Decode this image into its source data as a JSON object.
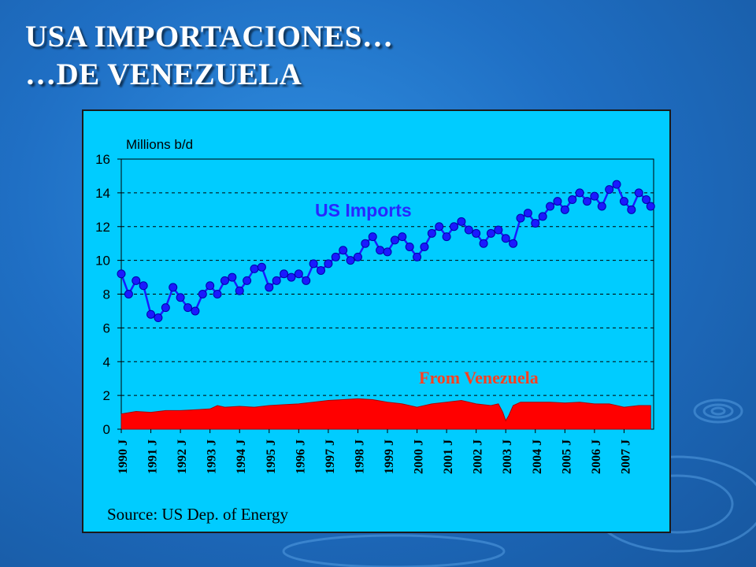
{
  "slide": {
    "title_line1": "USA IMPORTACIONES…",
    "title_line2": "…DE  VENEZUELA"
  },
  "colors": {
    "background": "#1f6fc4",
    "plot_area": "#00ccff",
    "us_imports": "#1a1aff",
    "venezuela": "#ff0000",
    "venezuela_label": "#ff4020"
  },
  "chart_data": {
    "type": "line",
    "ylabel": "Millions b/d",
    "ylim": [
      0,
      16
    ],
    "yticks": [
      "0",
      "2",
      "4",
      "6",
      "8",
      "10",
      "12",
      "14",
      "16"
    ],
    "grid": "horizontal dashed",
    "x_range": [
      1990.0,
      2008.0
    ],
    "xtick_labels": [
      "1990 J",
      "1991 J",
      "1992 J",
      "1993 J",
      "1994 J",
      "1995 J",
      "1996 J",
      "1997 J",
      "1998 J",
      "1999 J",
      "2000 J",
      "2001 J",
      "2002 J",
      "2003 J",
      "2004 J",
      "2005 J",
      "2006 J",
      "2007 J"
    ],
    "source": "Source: US Dep. of Energy",
    "series": [
      {
        "name": "US Imports",
        "kind": "line-markers",
        "x": [
          1990.0,
          1990.25,
          1990.5,
          1990.75,
          1991.0,
          1991.25,
          1991.5,
          1991.75,
          1992.0,
          1992.25,
          1992.5,
          1992.75,
          1993.0,
          1993.25,
          1993.5,
          1993.75,
          1994.0,
          1994.25,
          1994.5,
          1994.75,
          1995.0,
          1995.25,
          1995.5,
          1995.75,
          1996.0,
          1996.25,
          1996.5,
          1996.75,
          1997.0,
          1997.25,
          1997.5,
          1997.75,
          1998.0,
          1998.25,
          1998.5,
          1998.75,
          1999.0,
          1999.25,
          1999.5,
          1999.75,
          2000.0,
          2000.25,
          2000.5,
          2000.75,
          2001.0,
          2001.25,
          2001.5,
          2001.75,
          2002.0,
          2002.25,
          2002.5,
          2002.75,
          2003.0,
          2003.25,
          2003.5,
          2003.75,
          2004.0,
          2004.25,
          2004.5,
          2004.75,
          2005.0,
          2005.25,
          2005.5,
          2005.75,
          2006.0,
          2006.25,
          2006.5,
          2006.75,
          2007.0,
          2007.25,
          2007.5,
          2007.75,
          2007.9
        ],
        "values": [
          9.2,
          8.0,
          8.8,
          8.5,
          6.8,
          6.6,
          7.2,
          8.4,
          7.8,
          7.2,
          7.0,
          8.0,
          8.5,
          8.0,
          8.8,
          9.0,
          8.2,
          8.8,
          9.5,
          9.6,
          8.4,
          8.8,
          9.2,
          9.0,
          9.2,
          8.8,
          9.8,
          9.4,
          9.8,
          10.2,
          10.6,
          10.0,
          10.2,
          11.0,
          11.4,
          10.6,
          10.5,
          11.2,
          11.4,
          10.8,
          10.2,
          10.8,
          11.6,
          12.0,
          11.4,
          12.0,
          12.3,
          11.8,
          11.6,
          11.0,
          11.6,
          11.8,
          11.3,
          11.0,
          12.5,
          12.8,
          12.2,
          12.6,
          13.2,
          13.5,
          13.0,
          13.6,
          14.0,
          13.5,
          13.8,
          13.2,
          14.2,
          14.5,
          13.5,
          13.0,
          14.0,
          13.6,
          13.2
        ]
      },
      {
        "name": "From Venezuela",
        "kind": "area",
        "x": [
          1990.0,
          1990.5,
          1991.0,
          1991.5,
          1992.0,
          1992.5,
          1993.0,
          1993.25,
          1993.5,
          1994.0,
          1994.5,
          1995.0,
          1995.5,
          1996.0,
          1996.5,
          1997.0,
          1997.5,
          1998.0,
          1998.5,
          1999.0,
          1999.5,
          2000.0,
          2000.5,
          2001.0,
          2001.5,
          2002.0,
          2002.5,
          2002.75,
          2002.9,
          2003.0,
          2003.1,
          2003.25,
          2003.5,
          2004.0,
          2004.5,
          2005.0,
          2005.5,
          2006.0,
          2006.5,
          2007.0,
          2007.5,
          2007.9
        ],
        "values": [
          0.9,
          1.05,
          1.0,
          1.1,
          1.1,
          1.15,
          1.2,
          1.4,
          1.3,
          1.35,
          1.3,
          1.4,
          1.45,
          1.5,
          1.6,
          1.7,
          1.75,
          1.8,
          1.75,
          1.6,
          1.5,
          1.3,
          1.5,
          1.6,
          1.7,
          1.5,
          1.4,
          1.5,
          1.0,
          0.5,
          0.8,
          1.4,
          1.6,
          1.6,
          1.6,
          1.55,
          1.6,
          1.5,
          1.5,
          1.3,
          1.4,
          1.4
        ]
      }
    ]
  }
}
